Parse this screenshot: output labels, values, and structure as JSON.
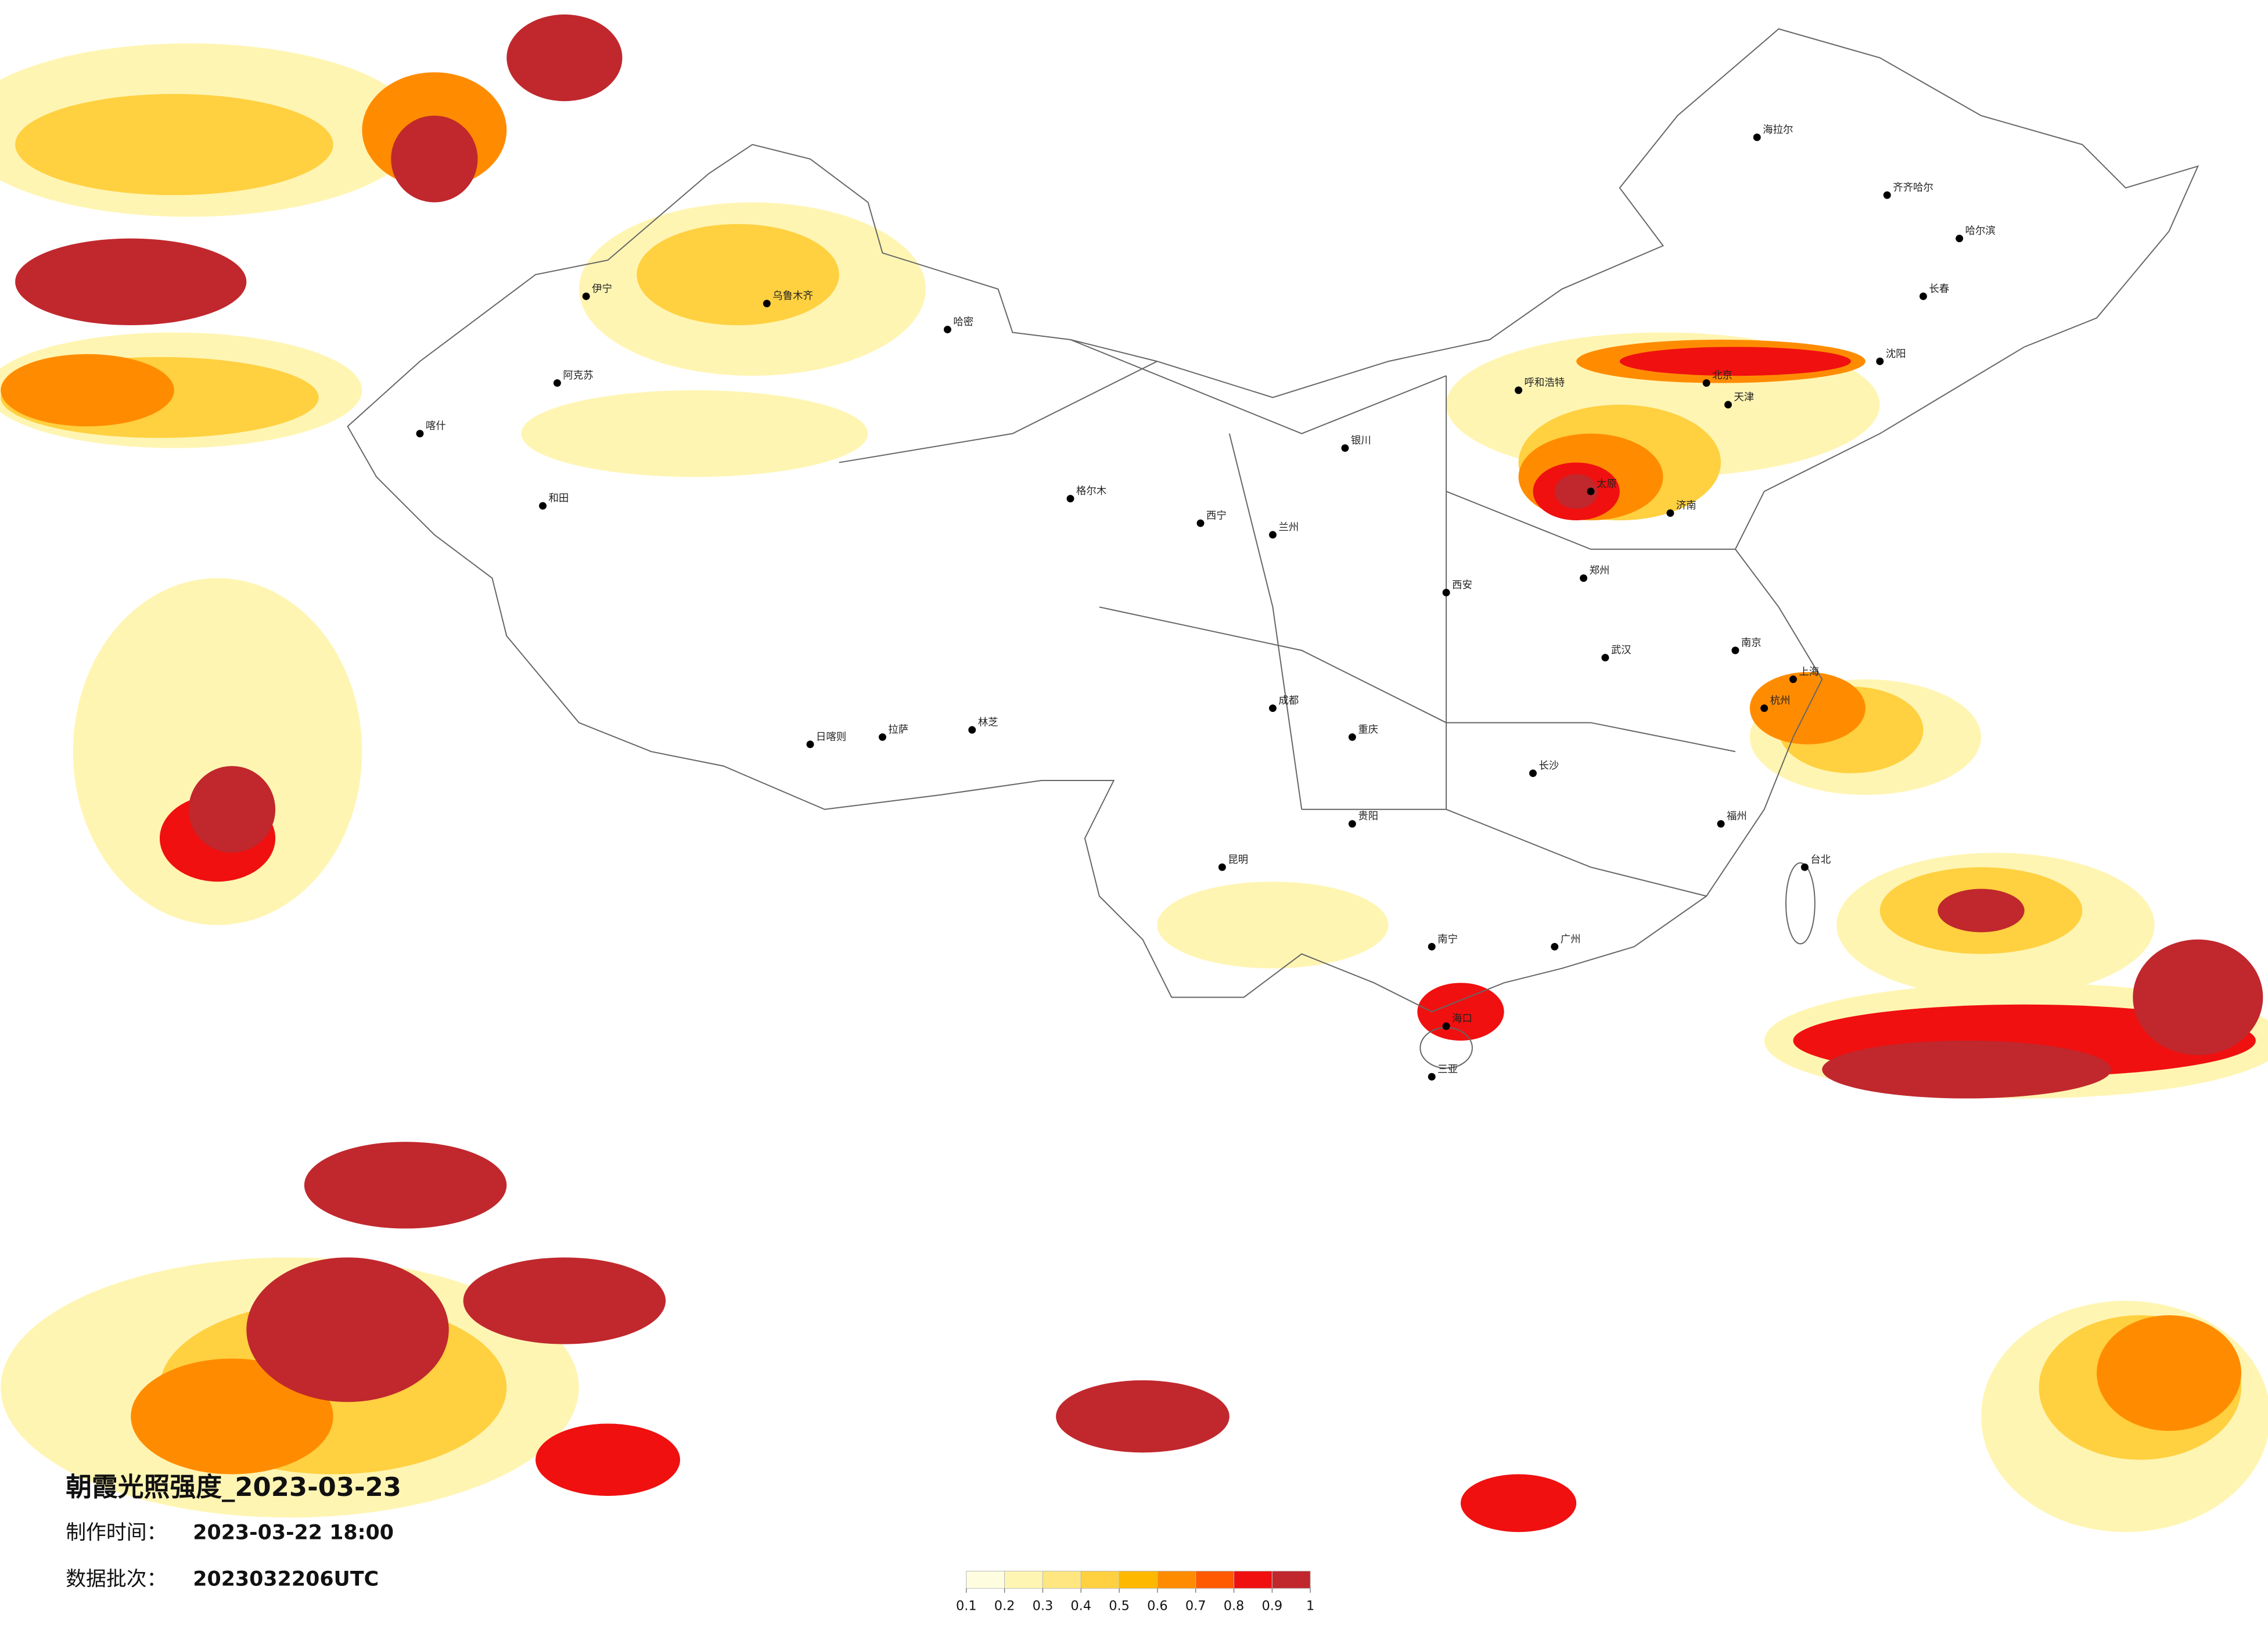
{
  "title": "朝霞光照强度_2023-03-23",
  "info": [
    {
      "label": "制作时间：",
      "value": "2023-03-22 18:00"
    },
    {
      "label": "数据批次：",
      "value": "2023032206UTC"
    }
  ],
  "legend": {
    "colors": [
      "#fffde0",
      "#fff5b3",
      "#ffe680",
      "#ffd040",
      "#ffb800",
      "#ff8c00",
      "#ff5a00",
      "#f01010",
      "#c0282d"
    ],
    "ticks": [
      0.1,
      0.2,
      0.3,
      0.4,
      0.5,
      0.6,
      0.7,
      0.8,
      0.9,
      1
    ]
  },
  "cities": [
    "伊宁",
    "阿克苏",
    "喀什",
    "和田",
    "乌鲁木齐",
    "哈密",
    "海拉尔",
    "齐齐哈尔",
    "哈尔滨",
    "长春",
    "沈阳",
    "呼和浩特",
    "北京",
    "天津",
    "太原",
    "济南",
    "郑州",
    "西安",
    "兰州",
    "西宁",
    "银川",
    "成都",
    "重庆",
    "武汉",
    "南京",
    "上海",
    "杭州",
    "长沙",
    "贵阳",
    "昆明",
    "南宁",
    "广州",
    "福州",
    "海口",
    "台北",
    "拉萨",
    "日喀则",
    "林芝",
    "格尔木",
    "三亚"
  ]
}
